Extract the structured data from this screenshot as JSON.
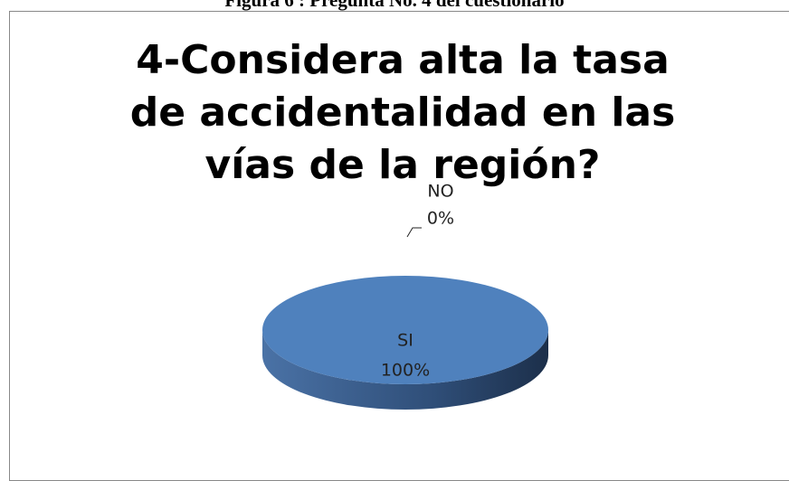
{
  "caption": "Figura 6 : Pregunta No. 4 del cuestionario",
  "chart_data": {
    "type": "pie",
    "title": "4-Considera alta la tasa de accidentalidad en las vías de la región?",
    "categories": [
      "SI",
      "NO"
    ],
    "values": [
      100,
      0
    ],
    "value_labels": [
      "100%",
      "0%"
    ],
    "colors": [
      "#4f81bd",
      "#c0504d"
    ]
  }
}
